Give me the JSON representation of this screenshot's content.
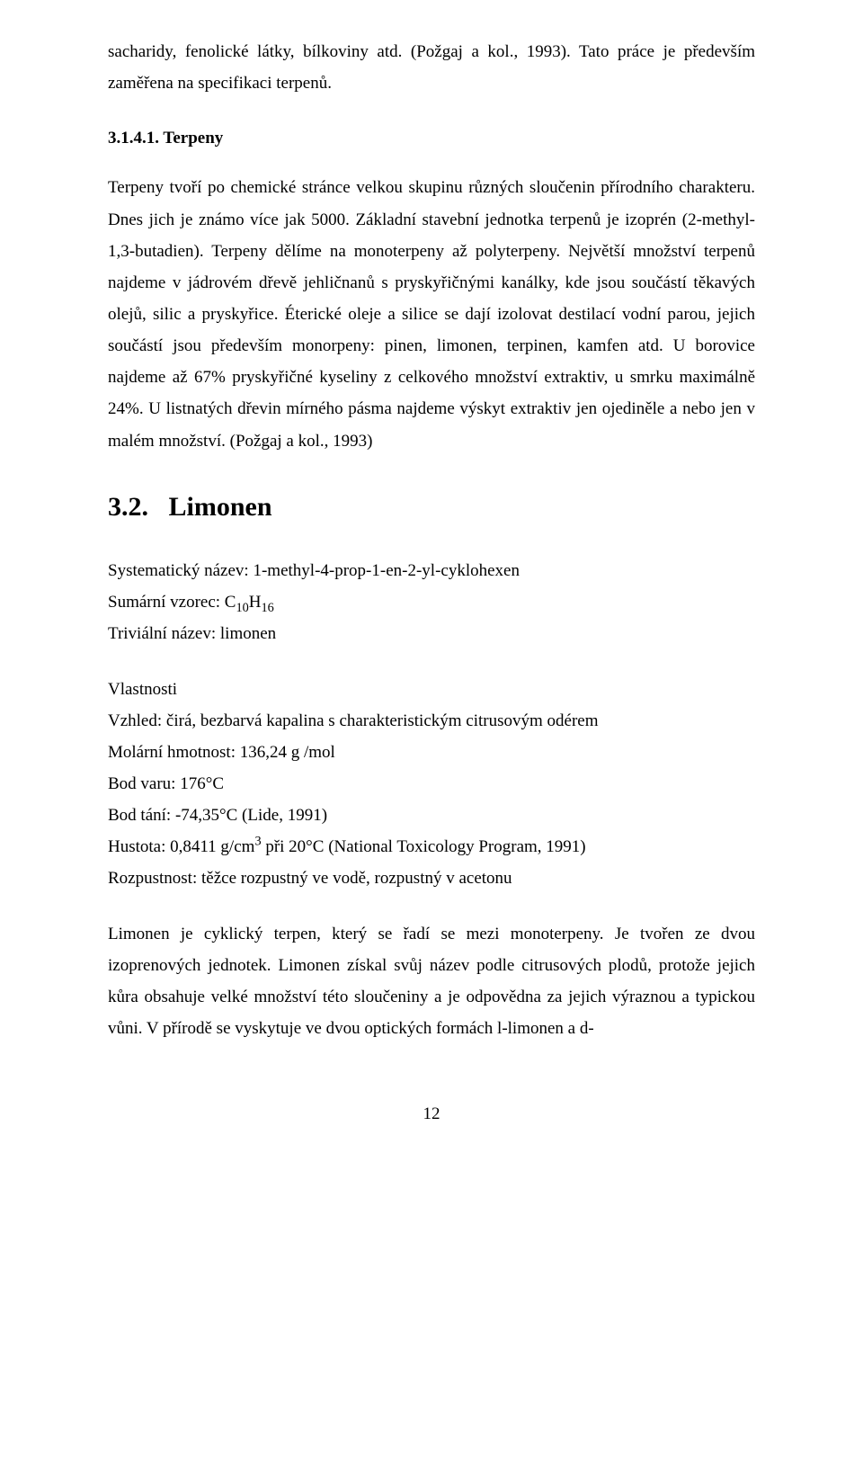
{
  "intro_para": "sacharidy, fenolické látky, bílkoviny atd. (Požgaj a kol., 1993). Tato práce je především zaměřena  na specifikaci terpenů.",
  "section_3_1_4_1": {
    "number": "3.1.4.1.",
    "title": "Terpeny",
    "body": "Terpeny tvoří po chemické stránce velkou skupinu různých sloučenin přírodního charakteru. Dnes jich je známo více jak 5000. Základní stavební jednotka terpenů je izoprén (2-methyl-1,3-butadien). Terpeny dělíme na monoterpeny až polyterpeny. Největší množství terpenů najdeme v jádrovém dřevě jehličnanů s pryskyřičnými kanálky, kde jsou součástí těkavých olejů, silic a pryskyřice. Éterické oleje  a silice se dají izolovat destilací vodní parou, jejich součástí jsou především monorpeny: pinen, limonen, terpinen, kamfen atd. U borovice najdeme až 67% pryskyřičné kyseliny z celkového množství extraktiv, u smrku maximálně 24%. U listnatých dřevin mírného pásma najdeme výskyt extraktiv jen ojediněle a nebo jen v malém množství. (Požgaj a kol., 1993)"
  },
  "section_3_2": {
    "number": "3.2.",
    "title": "Limonen",
    "systematic_label": "Systematický název:",
    "systematic_value": "1-methyl-4-prop-1-en-2-yl-cyklohexen",
    "formula_label": "Sumární vzorec:",
    "formula_prefix": "C",
    "formula_sub1": "10",
    "formula_mid": "H",
    "formula_sub2": "16",
    "trivial_label": "Triviální název:",
    "trivial_value": "limonen",
    "props_heading": "Vlastnosti",
    "appearance_label": "Vzhled:",
    "appearance_value": "čirá, bezbarvá kapalina s charakteristickým citrusovým odérem",
    "molmass_label": "Molární hmotnost:",
    "molmass_value": "136,24 g /mol",
    "bp_label": "Bod varu:",
    "bp_value": "176°C",
    "mp_label": "Bod tání:",
    "mp_value": "-74,35°C (Lide, 1991)",
    "density_label": "Hustota:",
    "density_value_pre": "0,8411 g/cm",
    "density_sup": "3",
    "density_value_post": " při 20°C (National Toxicology Program, 1991)",
    "solubility_label": "Rozpustnost:",
    "solubility_value": "těžce rozpustný ve vodě, rozpustný v acetonu",
    "body": "Limonen je cyklický terpen, který se řadí se mezi monoterpeny. Je tvořen ze dvou izoprenových jednotek. Limonen získal svůj název podle citrusových plodů, protože jejich kůra obsahuje velké množství této sloučeniny a je odpovědna za jejich výraznou a typickou vůni. V přírodě se vyskytuje ve dvou optických formách l-limonen a d-"
  },
  "page_number": "12"
}
